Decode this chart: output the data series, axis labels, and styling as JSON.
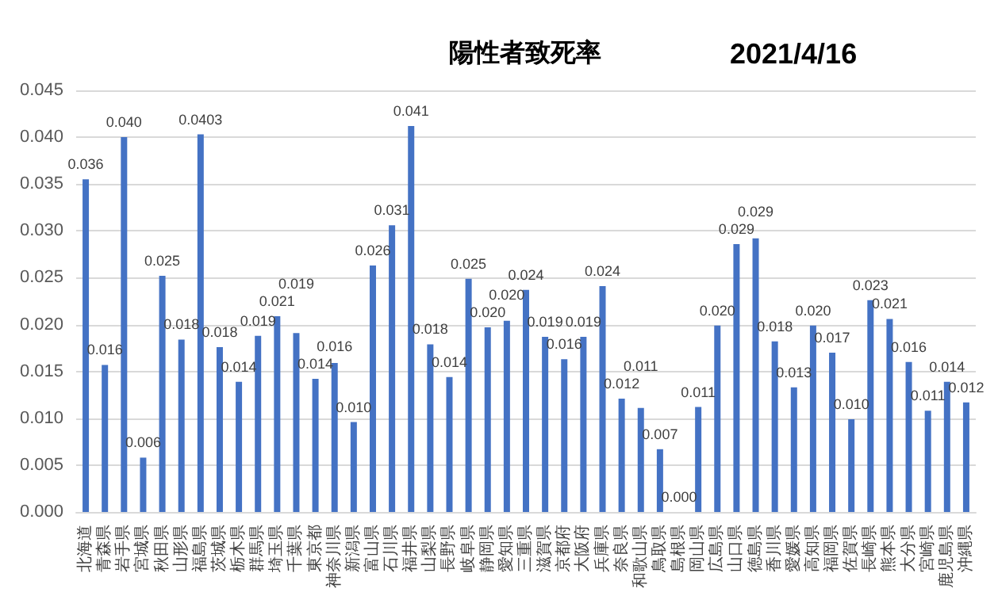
{
  "chart_data": {
    "type": "bar",
    "title": "陽性者致死率",
    "subtitle": "2021/4/16",
    "categories": [
      "北海道",
      "青森県",
      "岩手県",
      "宮城県",
      "秋田県",
      "山形県",
      "福島県",
      "茨城県",
      "栃木県",
      "群馬県",
      "埼玉県",
      "千葉県",
      "東京都",
      "神奈川県",
      "新潟県",
      "富山県",
      "石川県",
      "福井県",
      "山梨県",
      "長野県",
      "岐阜県",
      "静岡県",
      "愛知県",
      "三重県",
      "滋賀県",
      "京都府",
      "大阪府",
      "兵庫県",
      "奈良県",
      "和歌山県",
      "鳥取県",
      "島根県",
      "岡山県",
      "広島県",
      "山口県",
      "徳島県",
      "香川県",
      "愛媛県",
      "高知県",
      "福岡県",
      "佐賀県",
      "長崎県",
      "熊本県",
      "大分県",
      "宮崎県",
      "鹿児島県",
      "沖縄県"
    ],
    "values": [
      0.0355,
      0.0157,
      0.04,
      0.0058,
      0.0252,
      0.0184,
      0.0403,
      0.0176,
      0.0139,
      0.0188,
      0.0209,
      0.0191,
      0.0142,
      0.0159,
      0.0096,
      0.0263,
      0.0306,
      0.0412,
      0.0179,
      0.0144,
      0.0249,
      0.0197,
      0.0204,
      0.0237,
      0.0187,
      0.0163,
      0.0187,
      0.0241,
      0.0121,
      0.0111,
      0.0067,
      0.0,
      0.0112,
      0.0199,
      0.0286,
      0.0292,
      0.0182,
      0.0133,
      0.0199,
      0.017,
      0.0099,
      0.0226,
      0.0206,
      0.016,
      0.0108,
      0.0139,
      0.0117
    ],
    "value_labels": [
      "0.036",
      "0.016",
      "0.040",
      "0.006",
      "0.025",
      "0.018",
      "0.0403",
      "0.018",
      "0.014",
      "0.019",
      "0.021",
      "0.019",
      "0.014",
      "0.016",
      "0.010",
      "0.026",
      "0.031",
      "0.041",
      "0.018",
      "0.014",
      "0.025",
      "0.020",
      "0.020",
      "0.024",
      "0.019",
      "0.016",
      "0.019",
      "0.024",
      "0.012",
      "0.011",
      "0.007",
      "0.000",
      "0.011",
      "0.020",
      "0.029",
      "0.029",
      "0.018",
      "0.013",
      "0.020",
      "0.017",
      "0.010",
      "0.023",
      "0.021",
      "0.016",
      "0.011",
      "0.014",
      "0.012"
    ],
    "color": "#4472c4",
    "ylim": [
      0,
      0.045
    ],
    "yticks": [
      "0.000",
      "0.005",
      "0.010",
      "0.015",
      "0.020",
      "0.025",
      "0.030",
      "0.035",
      "0.040",
      "0.045"
    ],
    "grid": true
  }
}
